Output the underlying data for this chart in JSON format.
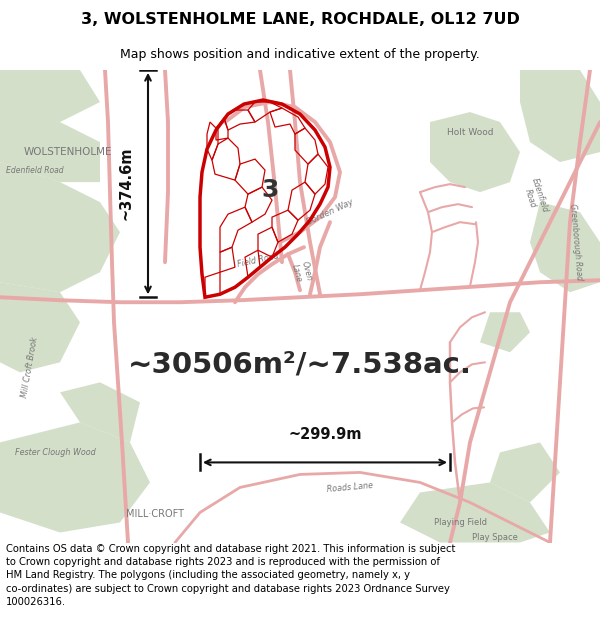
{
  "title_line1": "3, WOLSTENHOLME LANE, ROCHDALE, OL12 7UD",
  "title_line2": "Map shows position and indicative extent of the property.",
  "area_text": "~30506m²/~7.538ac.",
  "dim_width": "~299.9m",
  "dim_height": "~374.6m",
  "label_number": "3",
  "footer_text": "Contains OS data © Crown copyright and database right 2021. This information is subject\nto Crown copyright and database rights 2023 and is reproduced with the permission of\nHM Land Registry. The polygons (including the associated geometry, namely x, y\nco-ordinates) are subject to Crown copyright and database rights 2023 Ordnance Survey\n100026316.",
  "bg_color": "#f0ebe3",
  "green_fill": "#c5d5b8",
  "road_color": "#e8a8a8",
  "property_edge": "#cc0000",
  "figure_bg": "#ffffff",
  "text_label_color": "#777777",
  "dim_color": "#111111",
  "title_fontsize": 11.5,
  "subtitle_fontsize": 9,
  "area_fontsize": 21,
  "dim_fontsize": 10.5,
  "footer_fontsize": 7.2,
  "label_fontsize": 18
}
